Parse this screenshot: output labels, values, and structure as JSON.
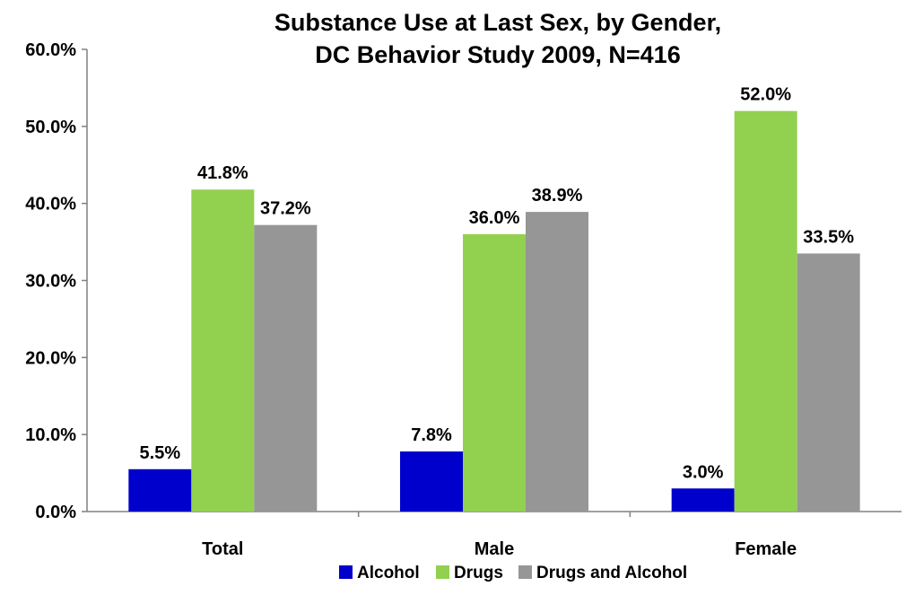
{
  "chart_data": {
    "type": "bar",
    "title": [
      "Substance Use at Last Sex, by Gender,",
      "DC Behavior Study 2009,  N=416"
    ],
    "categories": [
      "Total",
      "Male",
      "Female"
    ],
    "series": [
      {
        "name": "Alcohol",
        "values": [
          5.5,
          7.8,
          3.0
        ],
        "color": "#0000CC"
      },
      {
        "name": "Drugs",
        "values": [
          41.8,
          36.0,
          52.0
        ],
        "color": "#92D050"
      },
      {
        "name": "Drugs and Alcohol",
        "values": [
          37.2,
          38.9,
          33.5
        ],
        "color": "#969696"
      }
    ],
    "data_labels": [
      [
        "5.5%",
        "41.8%",
        "37.2%"
      ],
      [
        "7.8%",
        "36.0%",
        "38.9%"
      ],
      [
        "3.0%",
        "52.0%",
        "33.5%"
      ]
    ],
    "y_ticks": [
      0,
      10,
      20,
      30,
      40,
      50,
      60
    ],
    "y_tick_labels": [
      "0.0%",
      "10.0%",
      "20.0%",
      "30.0%",
      "40.0%",
      "50.0%",
      "60.0%"
    ],
    "ylim": [
      0,
      60
    ],
    "grid": false,
    "legend_position": "bottom"
  }
}
